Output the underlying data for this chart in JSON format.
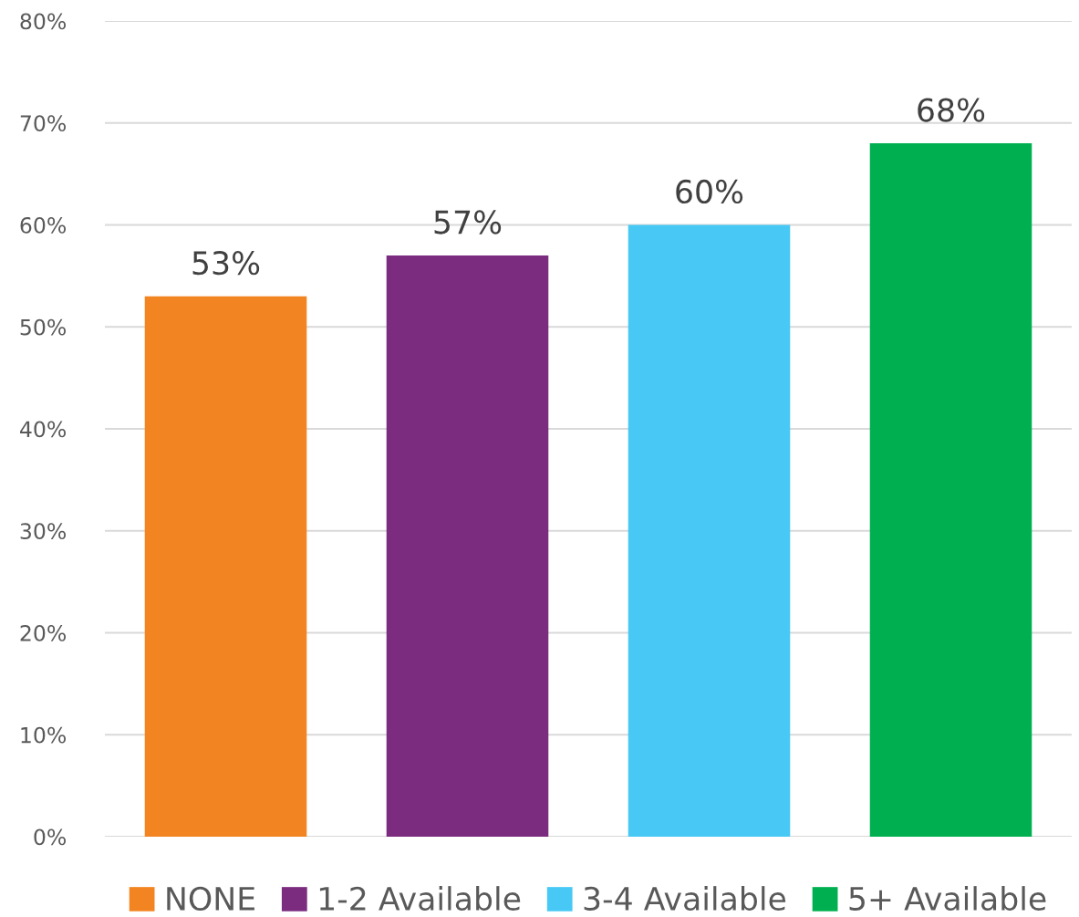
{
  "chart_data": {
    "type": "bar",
    "categories": [
      null,
      null,
      null,
      null
    ],
    "series": [
      {
        "name": "NONE",
        "color": "#f28522",
        "values": [
          53,
          null,
          null,
          null
        ],
        "value_labels": [
          "53%",
          null,
          null,
          null
        ]
      },
      {
        "name": "1-2 Available",
        "color": "#7b2c7f",
        "values": [
          null,
          57,
          null,
          null
        ],
        "value_labels": [
          null,
          "57%",
          null,
          null
        ]
      },
      {
        "name": "3-4 Available",
        "color": "#47c8f5",
        "values": [
          null,
          null,
          60,
          null
        ],
        "value_labels": [
          null,
          null,
          "60%",
          null
        ]
      },
      {
        "name": "5+ Available",
        "color": "#00b050",
        "values": [
          null,
          null,
          null,
          68
        ],
        "value_labels": [
          null,
          null,
          null,
          "68%"
        ]
      }
    ],
    "ylim": [
      0,
      80
    ],
    "yticks": [
      {
        "value": 0,
        "label": "0%"
      },
      {
        "value": 10,
        "label": "10%"
      },
      {
        "value": 20,
        "label": "20%"
      },
      {
        "value": 30,
        "label": "30%"
      },
      {
        "value": 40,
        "label": "40%"
      },
      {
        "value": 50,
        "label": "50%"
      },
      {
        "value": 60,
        "label": "60%"
      },
      {
        "value": 70,
        "label": "70%"
      },
      {
        "value": 80,
        "label": "80%"
      }
    ],
    "grid": "y",
    "legend": "bottom"
  }
}
